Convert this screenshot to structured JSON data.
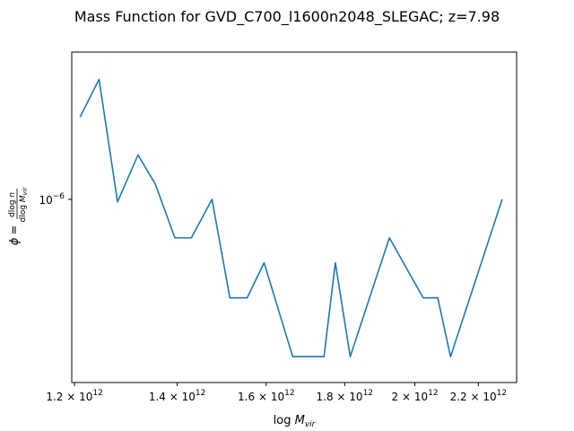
{
  "chart_data": {
    "type": "line",
    "title": "Mass Function for GVD_C700_l1600n2048_SLEGAC; z=7.98",
    "xlabel": "log M_vir",
    "ylabel": "φ = dlog n / dlog M_vir",
    "xscale": "log",
    "yscale": "log",
    "xlim": [
      1195000000000.0,
      2330000000000.0
    ],
    "ylim": [
      4.88e-07,
      1.78e-06
    ],
    "grid": false,
    "legend": "none",
    "x_ticks": [
      {
        "value": 1200000000000.0,
        "mantissa": "1.2",
        "base": "10",
        "exponent": "12"
      },
      {
        "value": 1400000000000.0,
        "mantissa": "1.4",
        "base": "10",
        "exponent": "12"
      },
      {
        "value": 1600000000000.0,
        "mantissa": "1.6",
        "base": "10",
        "exponent": "12"
      },
      {
        "value": 1800000000000.0,
        "mantissa": "1.8",
        "base": "10",
        "exponent": "12"
      },
      {
        "value": 2000000000000.0,
        "mantissa": "2",
        "base": "10",
        "exponent": "12"
      },
      {
        "value": 2200000000000.0,
        "mantissa": "2.2",
        "base": "10",
        "exponent": "12"
      }
    ],
    "y_ticks": [
      {
        "value": 1e-06,
        "base": "10",
        "exponent": "−6"
      }
    ],
    "series": [
      {
        "color": "#1f77b4",
        "x": [
          1210000000000.0,
          1245000000000.0,
          1280000000000.0,
          1320000000000.0,
          1355000000000.0,
          1395000000000.0,
          1430000000000.0,
          1475000000000.0,
          1515000000000.0,
          1555000000000.0,
          1595000000000.0,
          1665000000000.0,
          1745000000000.0,
          1775000000000.0,
          1815000000000.0,
          1925000000000.0,
          2025000000000.0,
          2070000000000.0,
          2110000000000.0,
          2280000000000.0
        ],
        "y": [
          1.38e-06,
          1.6e-06,
          9.9e-07,
          1.19e-06,
          1.06e-06,
          8.6e-07,
          8.6e-07,
          1e-06,
          6.8e-07,
          6.8e-07,
          7.8e-07,
          5.4e-07,
          5.4e-07,
          7.8e-07,
          5.4e-07,
          8.6e-07,
          6.8e-07,
          6.8e-07,
          5.4e-07,
          1e-06
        ]
      }
    ]
  }
}
